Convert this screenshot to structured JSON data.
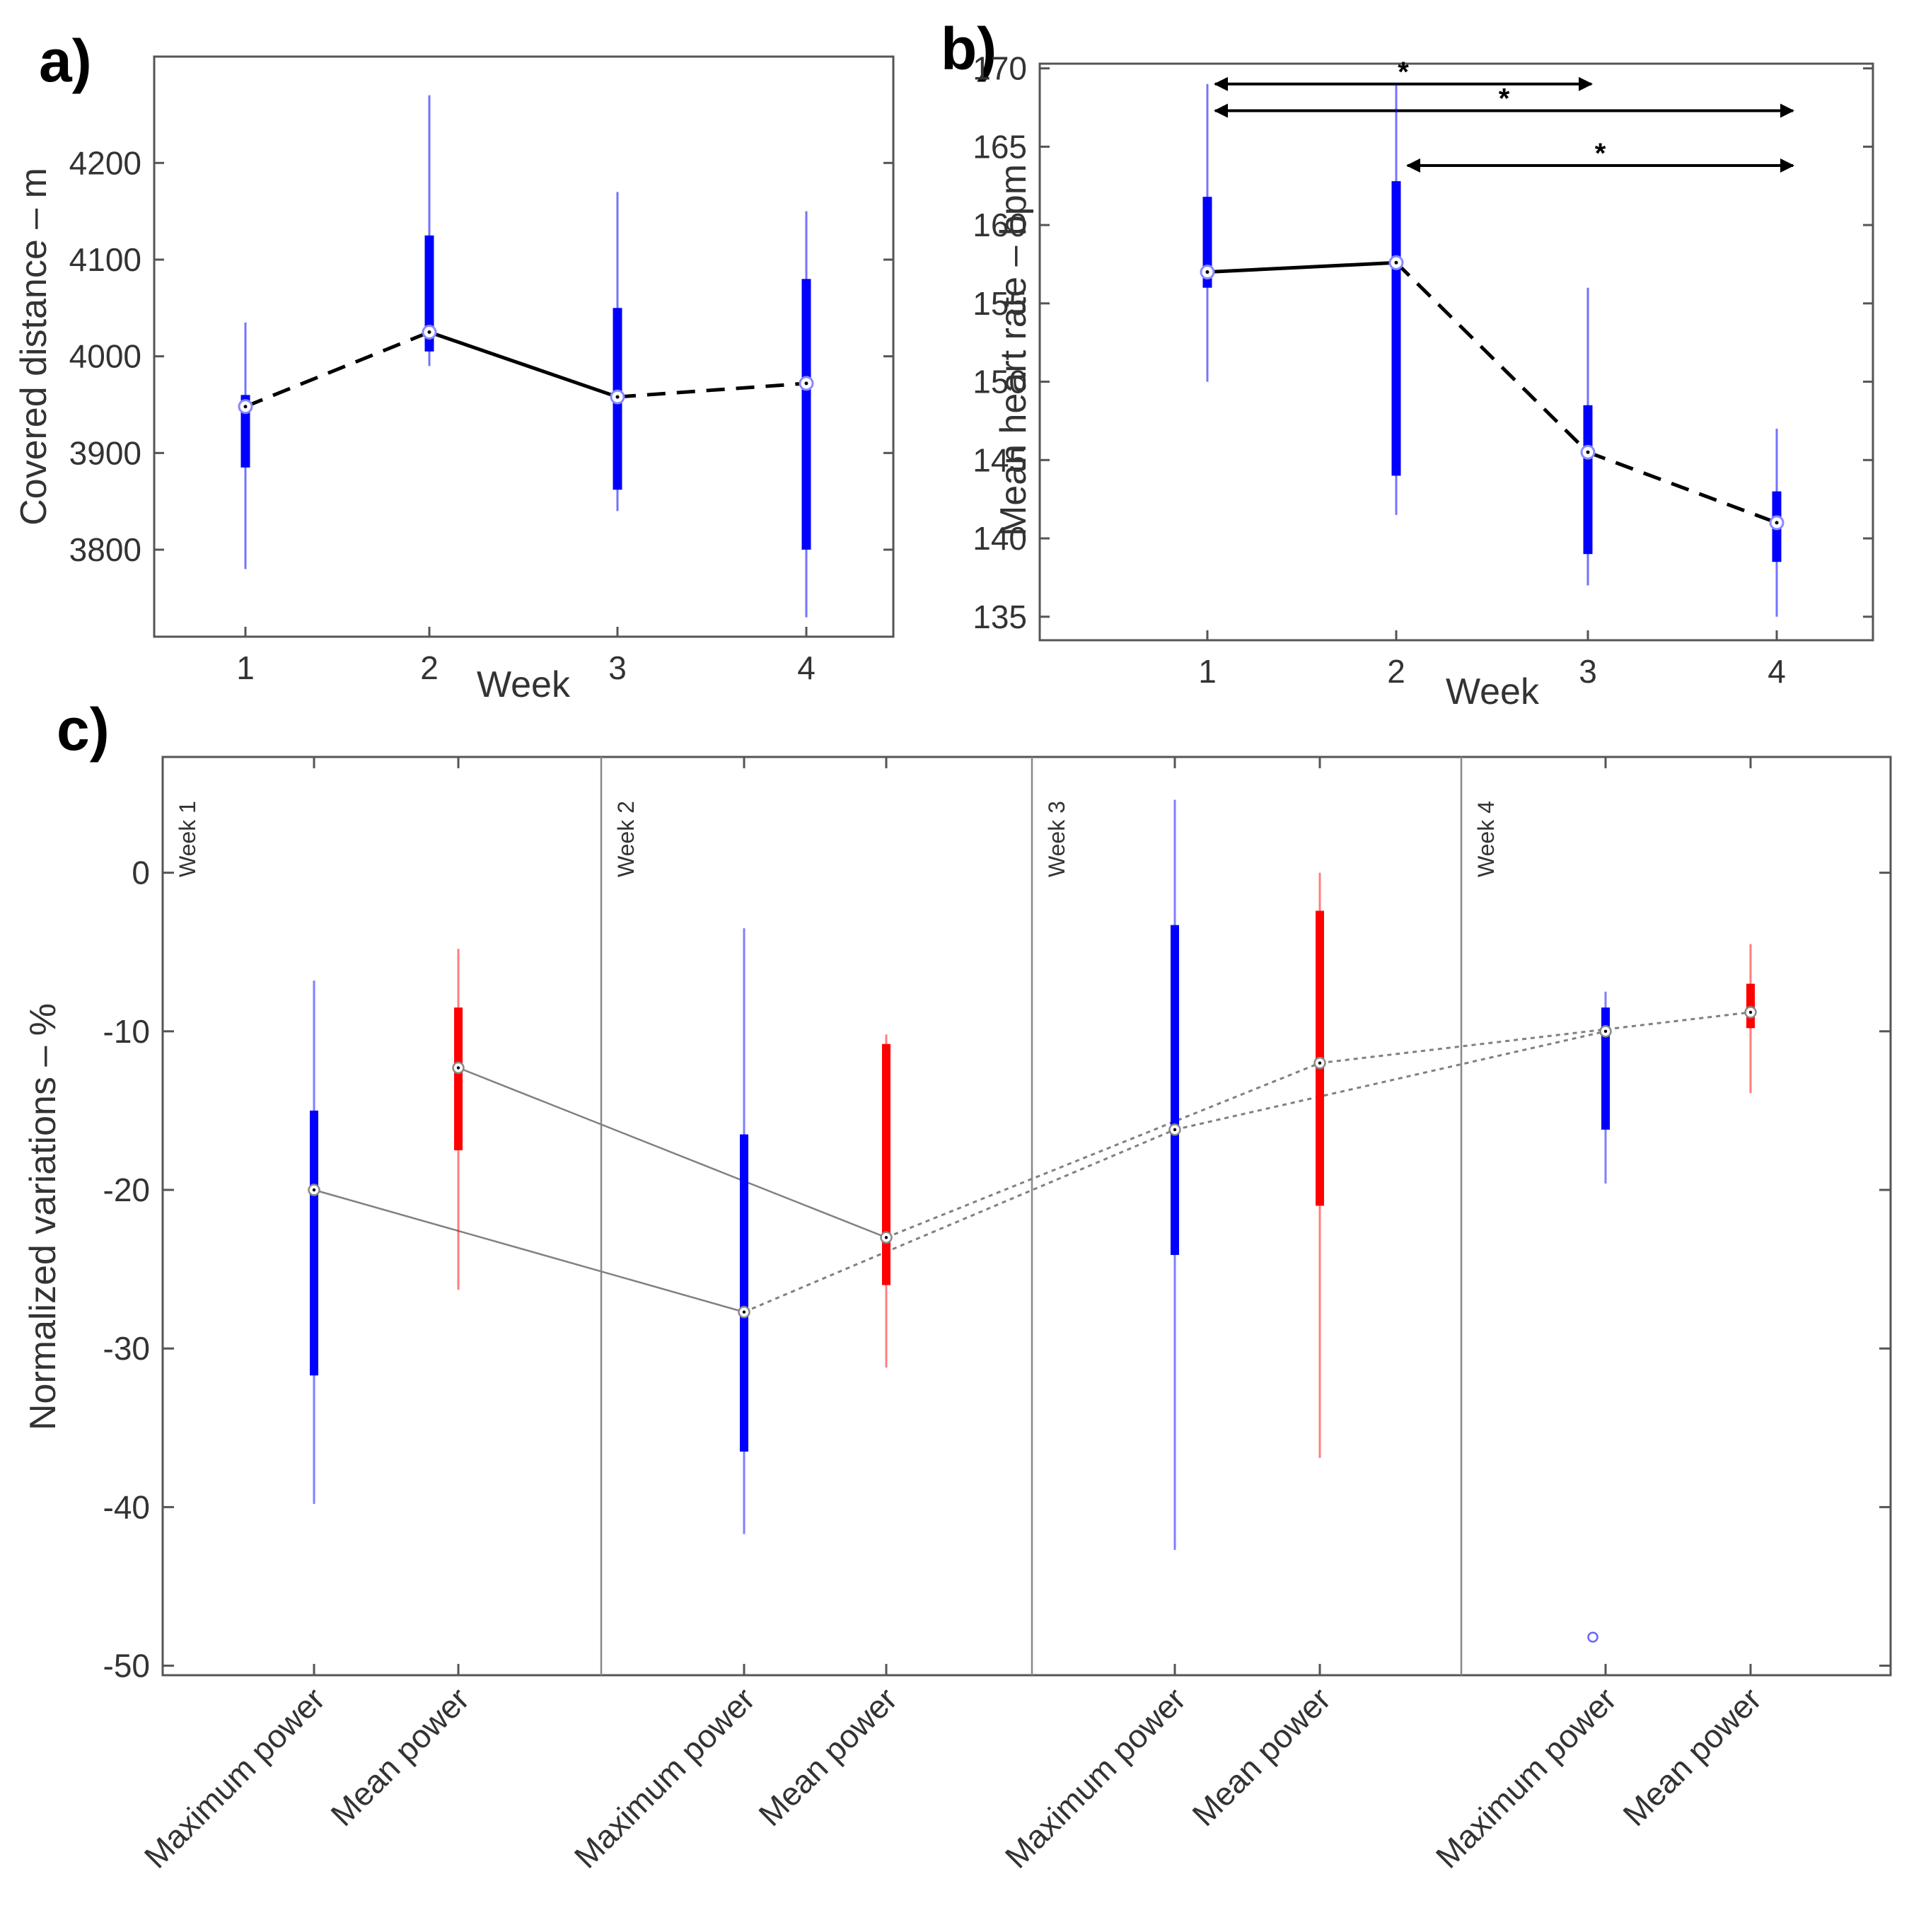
{
  "colors": {
    "blue": "#0000ff",
    "red": "#ff0000",
    "black": "#000000",
    "gray": "#808080",
    "frame": "#555555"
  },
  "chart_data": [
    {
      "panel": "a)",
      "type": "box",
      "xlabel": "Week",
      "ylabel": "Covered distance – m",
      "xticks": [
        "1",
        "2",
        "3",
        "4"
      ],
      "yticks": [
        "3800",
        "3900",
        "4000",
        "4100",
        "4200"
      ],
      "ylim": [
        3710,
        4310
      ],
      "series": [
        {
          "week": 1,
          "median": 3948,
          "q1": 3885,
          "q3": 3960,
          "whisker_low": 3780,
          "whisker_high": 4035
        },
        {
          "week": 2,
          "median": 4025,
          "q1": 4005,
          "q3": 4125,
          "whisker_low": 3990,
          "whisker_high": 4270
        },
        {
          "week": 3,
          "median": 3958,
          "q1": 3862,
          "q3": 4050,
          "whisker_low": 3840,
          "whisker_high": 4170
        },
        {
          "week": 4,
          "median": 3972,
          "q1": 3800,
          "q3": 4080,
          "whisker_low": 3730,
          "whisker_high": 4150
        }
      ],
      "connectors": [
        {
          "from": 1,
          "to": 2,
          "style": "dashed"
        },
        {
          "from": 2,
          "to": 3,
          "style": "solid"
        },
        {
          "from": 3,
          "to": 4,
          "style": "dashed"
        }
      ]
    },
    {
      "panel": "b)",
      "type": "box",
      "xlabel": "Week",
      "ylabel": "Mean heart rate – bpm",
      "xticks": [
        "1",
        "2",
        "3",
        "4"
      ],
      "yticks": [
        "135",
        "140",
        "145",
        "150",
        "155",
        "160",
        "165",
        "170"
      ],
      "ylim": [
        133.5,
        170.3
      ],
      "series": [
        {
          "week": 1,
          "median": 157,
          "q1": 156,
          "q3": 161.8,
          "whisker_low": 150,
          "whisker_high": 169
        },
        {
          "week": 2,
          "median": 157.6,
          "q1": 144,
          "q3": 162.8,
          "whisker_low": 141.5,
          "whisker_high": 169
        },
        {
          "week": 3,
          "median": 145.5,
          "q1": 139,
          "q3": 148.5,
          "whisker_low": 137,
          "whisker_high": 156
        },
        {
          "week": 4,
          "median": 141,
          "q1": 138.5,
          "q3": 143,
          "whisker_low": 135,
          "whisker_high": 147
        }
      ],
      "connectors": [
        {
          "from": 1,
          "to": 2,
          "style": "solid"
        },
        {
          "from": 2,
          "to": 3,
          "style": "dashed"
        },
        {
          "from": 3,
          "to": 4,
          "style": "dashed"
        }
      ],
      "significance": [
        {
          "from": 1,
          "to": 3,
          "y": 169,
          "label": "*"
        },
        {
          "from": 1,
          "to": 4,
          "y": 167.3,
          "label": "*"
        },
        {
          "from": 2,
          "to": 4,
          "y": 163.8,
          "label": "*"
        }
      ]
    },
    {
      "panel": "c)",
      "type": "box",
      "ylabel": "Normalized variations –   %",
      "yticks": [
        "-50",
        "-40",
        "-30",
        "-20",
        "-10",
        "0"
      ],
      "ylim": [
        -50.6,
        7.3
      ],
      "groups": [
        "Week 1",
        "Week 2",
        "Week 3",
        "Week 4"
      ],
      "categories": [
        "Maximum power",
        "Mean power",
        "Maximum power",
        "Mean power",
        "Maximum power",
        "Mean power",
        "Maximum power",
        "Mean power"
      ],
      "series": [
        {
          "label": "Maximum power",
          "week": 1,
          "color": "blue",
          "median": -20,
          "q1": -31.7,
          "q3": -15.0,
          "whisker_low": -39.8,
          "whisker_high": -6.8
        },
        {
          "label": "Mean power",
          "week": 1,
          "color": "red",
          "median": -12.3,
          "q1": -17.5,
          "q3": -8.5,
          "whisker_low": -26.3,
          "whisker_high": -4.8
        },
        {
          "label": "Maximum power",
          "week": 2,
          "color": "blue",
          "median": -27.7,
          "q1": -36.5,
          "q3": -16.5,
          "whisker_low": -41.7,
          "whisker_high": -3.5
        },
        {
          "label": "Mean power",
          "week": 2,
          "color": "red",
          "median": -23.0,
          "q1": -26.0,
          "q3": -10.8,
          "whisker_low": -31.2,
          "whisker_high": -10.2
        },
        {
          "label": "Maximum power",
          "week": 3,
          "color": "blue",
          "median": -16.2,
          "q1": -24.1,
          "q3": -3.3,
          "whisker_low": -42.7,
          "whisker_high": 4.6
        },
        {
          "label": "Mean power",
          "week": 3,
          "color": "red",
          "median": -12.0,
          "q1": -21.0,
          "q3": -2.4,
          "whisker_low": -36.9,
          "whisker_high": 0.0
        },
        {
          "label": "Maximum power",
          "week": 4,
          "color": "blue",
          "median": -10.0,
          "q1": -16.2,
          "q3": -8.5,
          "whisker_low": -19.6,
          "whisker_high": -7.5,
          "outlier": -48.2
        },
        {
          "label": "Mean power",
          "week": 4,
          "color": "red",
          "median": -8.8,
          "q1": -9.8,
          "q3": -7.0,
          "whisker_low": -13.9,
          "whisker_high": -4.5
        }
      ],
      "connectors": [
        {
          "from": 0,
          "to": 2,
          "style": "solid"
        },
        {
          "from": 1,
          "to": 3,
          "style": "solid"
        },
        {
          "from": 2,
          "to": 4,
          "style": "dotted"
        },
        {
          "from": 3,
          "to": 5,
          "style": "dotted"
        },
        {
          "from": 4,
          "to": 6,
          "style": "dotted"
        },
        {
          "from": 5,
          "to": 7,
          "style": "dotted"
        }
      ]
    }
  ]
}
